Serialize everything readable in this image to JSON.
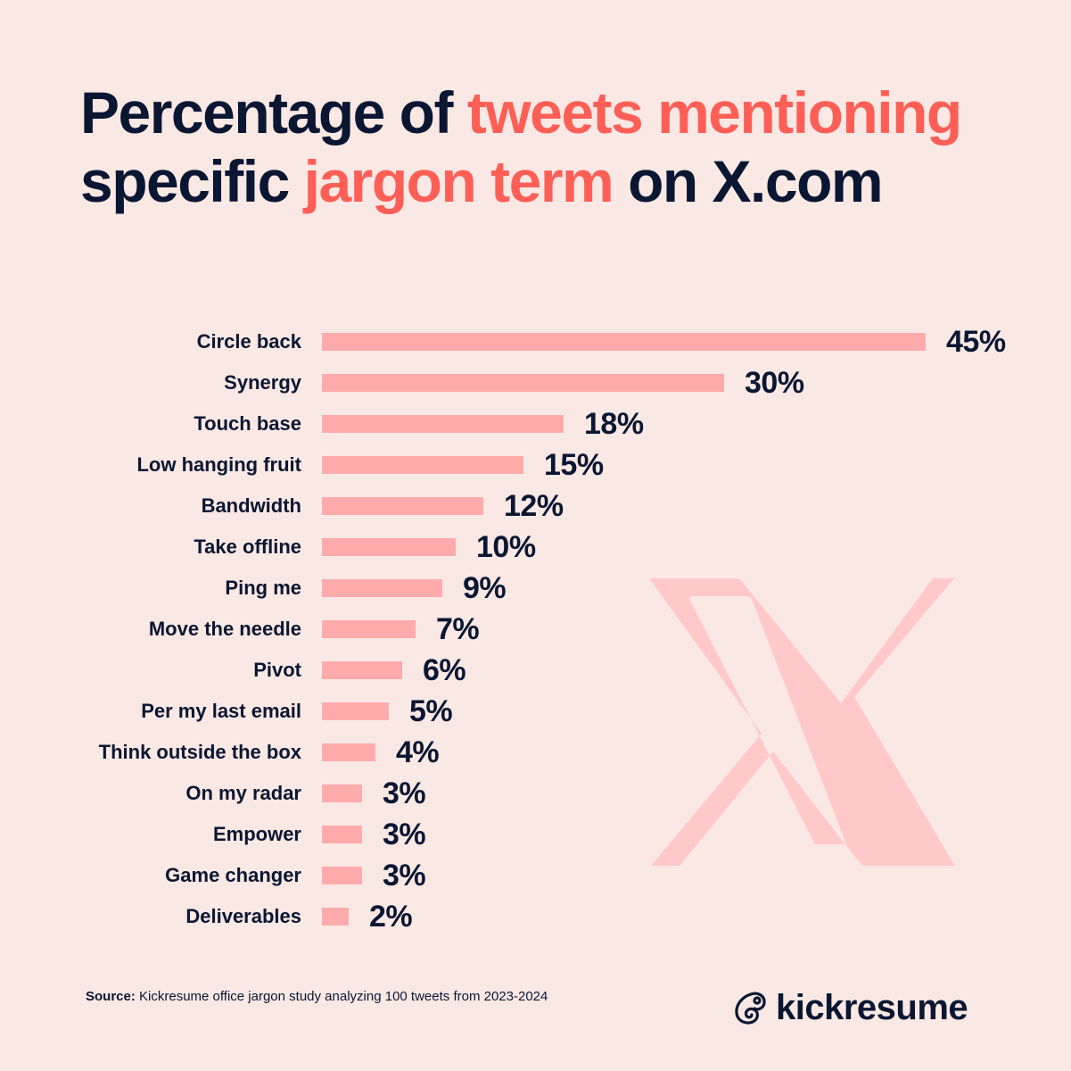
{
  "title": {
    "segments": [
      {
        "text": "Percentage of ",
        "style": "dark"
      },
      {
        "text": "tweets",
        "style": "accent"
      },
      {
        "text": " ",
        "style": "dark"
      },
      {
        "text": "mentioning",
        "style": "accent"
      },
      {
        "text": " specific ",
        "style": "dark"
      },
      {
        "text": "jargon",
        "style": "accent"
      },
      {
        "text": " ",
        "style": "dark"
      },
      {
        "text": "term",
        "style": "accent"
      },
      {
        "text": " on X.com",
        "style": "dark"
      }
    ]
  },
  "colors": {
    "background": "#fae8e4",
    "accent": "#fd5f57",
    "dark": "#0b1633",
    "bar": "#ffabab",
    "x_logo": "#fec9c8"
  },
  "chart_data": {
    "type": "bar",
    "orientation": "horizontal",
    "title": "Percentage of tweets mentioning specific jargon term on X.com",
    "xlabel": "",
    "ylabel": "",
    "unit": "%",
    "grid": false,
    "legend": null,
    "categories": [
      "Circle back",
      "Synergy",
      "Touch base",
      "Low hanging fruit",
      "Bandwidth",
      "Take offline",
      "Ping me",
      "Move the needle",
      "Pivot",
      "Per my last email",
      "Think outside the box",
      "On my radar",
      "Empower",
      "Game changer",
      "Deliverables"
    ],
    "values": [
      45,
      30,
      18,
      15,
      12,
      10,
      9,
      7,
      6,
      5,
      4,
      3,
      3,
      3,
      2
    ],
    "value_labels": [
      "45%",
      "30%",
      "18%",
      "15%",
      "12%",
      "10%",
      "9%",
      "7%",
      "6%",
      "5%",
      "4%",
      "3%",
      "3%",
      "3%",
      "2%"
    ],
    "xlim": [
      0,
      45
    ]
  },
  "footer": {
    "source_label": "Source:",
    "source_text": " Kickresume office jargon study analyzing 100 tweets from 2023-2024",
    "brand": "kickresume",
    "brand_icon": "chameleon-logo-icon"
  },
  "decor": {
    "background_icon": "x-logo-icon"
  }
}
